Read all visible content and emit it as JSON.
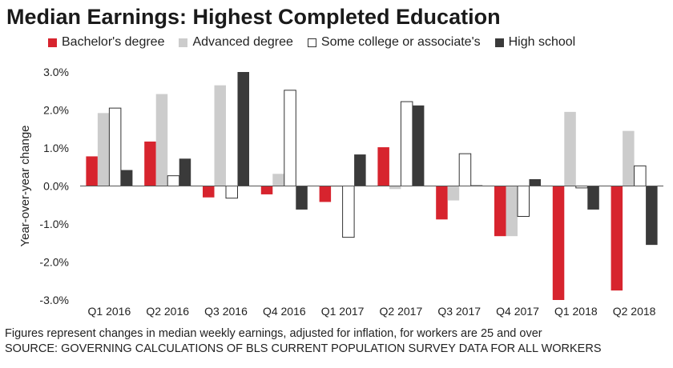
{
  "chart_data": {
    "type": "bar",
    "title": "Median Earnings: Highest Completed Education",
    "ylabel": "Year-over-year change",
    "ylim": [
      -3.0,
      3.0
    ],
    "yticks": [
      "3.0%",
      "2.0%",
      "1.0%",
      "0.0%",
      "-1.0%",
      "-2.0%",
      "-3.0%"
    ],
    "categories": [
      "Q1 2016",
      "Q2 2016",
      "Q3 2016",
      "Q4 2016",
      "Q1 2017",
      "Q2 2017",
      "Q3 2017",
      "Q4 2017",
      "Q1 2018",
      "Q2 2018"
    ],
    "series": [
      {
        "name": "Bachelor's degree",
        "color": "#d7242e",
        "values": [
          0.78,
          1.17,
          -0.3,
          -0.22,
          -0.42,
          1.02,
          -0.88,
          -1.32,
          -3.0,
          -2.75
        ]
      },
      {
        "name": "Advanced degree",
        "color": "#cccccc",
        "values": [
          1.92,
          2.42,
          2.65,
          0.32,
          -0.02,
          -0.08,
          -0.38,
          -1.32,
          1.95,
          1.45
        ]
      },
      {
        "name": "Some college or associate's",
        "color": "#ffffff",
        "values": [
          2.05,
          0.27,
          -0.32,
          2.52,
          -1.35,
          2.22,
          0.85,
          -0.8,
          -0.05,
          0.53
        ]
      },
      {
        "name": "High school",
        "color": "#3a3a3a",
        "values": [
          0.42,
          0.72,
          3.0,
          -0.62,
          0.83,
          2.12,
          0.02,
          0.18,
          -0.62,
          -1.55
        ]
      }
    ],
    "legend_position": "top",
    "grid": false
  },
  "footer": {
    "note": "Figures represent changes in median weekly earnings, adjusted for inflation, for workers are 25 and over",
    "source": "SOURCE: GOVERNING CALCULATIONS OF BLS CURRENT POPULATION SURVEY DATA FOR ALL WORKERS"
  }
}
